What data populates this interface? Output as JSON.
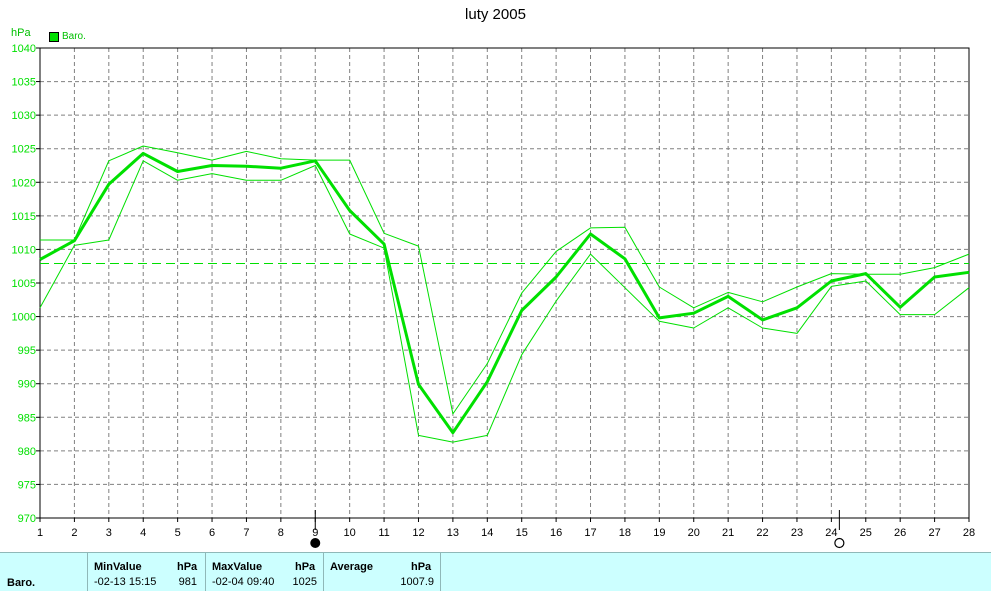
{
  "title": "luty 2005",
  "unit": "hPa",
  "legend": {
    "label": "Baro.",
    "color": "#00e000"
  },
  "colors": {
    "line": "#00e000",
    "axis": "#000000",
    "grid": "#808080",
    "stats_bg": "#ccffff"
  },
  "chart_data": {
    "type": "line",
    "title": "luty 2005",
    "ylabel": "hPa",
    "xlabel": "",
    "ylim": [
      970,
      1040
    ],
    "yticks": [
      970,
      975,
      980,
      985,
      990,
      995,
      1000,
      1005,
      1010,
      1015,
      1020,
      1025,
      1030,
      1035,
      1040
    ],
    "x": [
      1,
      2,
      3,
      4,
      5,
      6,
      7,
      8,
      9,
      10,
      11,
      12,
      13,
      14,
      15,
      16,
      17,
      18,
      19,
      20,
      21,
      22,
      23,
      24,
      25,
      26,
      27,
      28
    ],
    "grid": true,
    "average": 1007.9,
    "series": [
      {
        "name": "Baro.",
        "role": "mean",
        "values": [
          1008.5,
          1011.3,
          1019.7,
          1024.3,
          1021.6,
          1022.5,
          1022.4,
          1022.1,
          1023.2,
          1015.8,
          1010.8,
          989.9,
          982.7,
          990.3,
          1000.9,
          1005.9,
          1012.3,
          1008.6,
          999.8,
          1000.5,
          1003.0,
          999.5,
          1001.3,
          1005.3,
          1006.4,
          1001.4,
          1005.9,
          1006.6
        ]
      },
      {
        "role": "max",
        "values": [
          1011.4,
          1011.4,
          1023.2,
          1025.4,
          1024.4,
          1023.3,
          1024.6,
          1023.5,
          1023.3,
          1023.3,
          1012.4,
          1010.5,
          985.5,
          993.0,
          1003.5,
          1009.7,
          1013.2,
          1013.3,
          1004.4,
          1001.3,
          1003.6,
          1002.2,
          1004.4,
          1006.4,
          1006.3,
          1006.3,
          1007.3,
          1009.3
        ]
      },
      {
        "role": "min",
        "values": [
          1001.3,
          1010.6,
          1011.4,
          1023.2,
          1020.3,
          1021.3,
          1020.3,
          1020.3,
          1022.5,
          1012.3,
          1010.2,
          982.3,
          981.3,
          982.3,
          994.3,
          1002.3,
          1009.3,
          1004.3,
          999.3,
          998.3,
          1001.3,
          998.3,
          997.5,
          1004.5,
          1005.3,
          1000.3,
          1000.3,
          1004.3
        ]
      }
    ]
  },
  "markers": {
    "filled_day": 9,
    "open_day": 24
  },
  "stats": {
    "row_label": "Baro.",
    "min": {
      "header": "MinValue",
      "unit": "hPa",
      "when": "-02-13  15:15",
      "value": "981"
    },
    "max": {
      "header": "MaxValue",
      "unit": "hPa",
      "when": "-02-04  09:40",
      "value": "1025"
    },
    "avg": {
      "header": "Average",
      "unit": "hPa",
      "value": "1007.9"
    }
  }
}
